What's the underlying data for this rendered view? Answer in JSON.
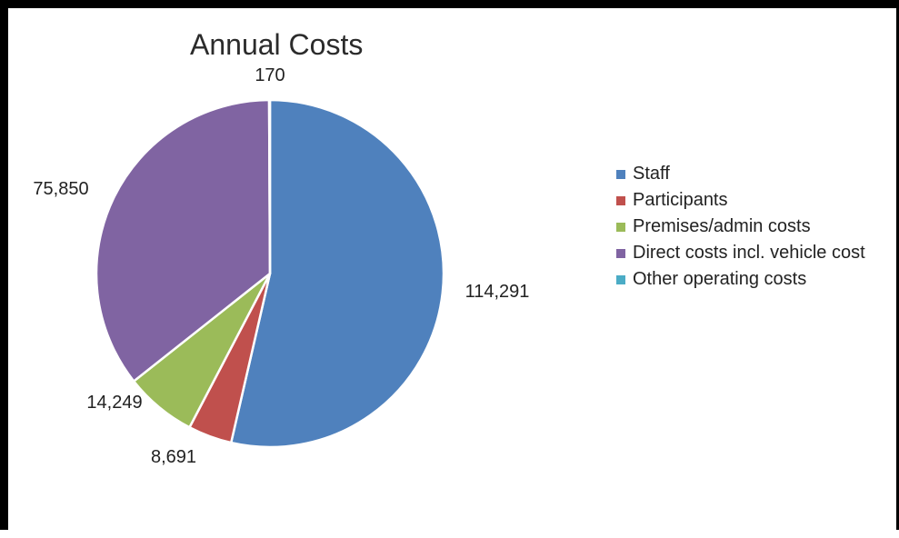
{
  "chart_data": {
    "type": "pie",
    "title": "Annual Costs",
    "categories": [
      "Staff",
      "Participants",
      "Premises/admin costs",
      "Direct costs incl. vehicle cost",
      "Other operating costs"
    ],
    "values": [
      114291,
      8691,
      14249,
      75850,
      170
    ],
    "value_labels": [
      "114,291",
      "8,691",
      "14,249",
      "75,850",
      "170"
    ],
    "colors": [
      "#4f81bd",
      "#c0504d",
      "#9bbb59",
      "#8064a2",
      "#4bacc6"
    ],
    "legend_position": "right",
    "start_angle": "12 o'clock",
    "direction": "clockwise"
  }
}
